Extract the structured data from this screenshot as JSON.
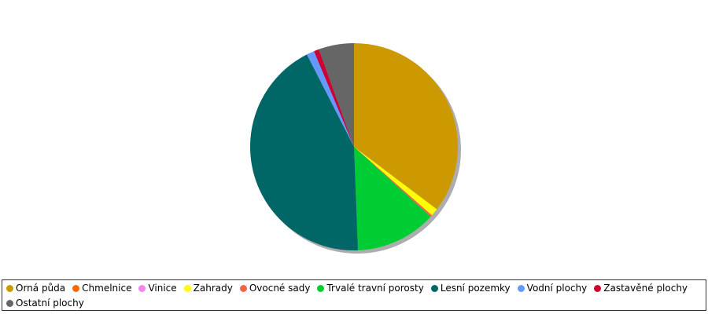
{
  "chart_data": {
    "type": "pie",
    "categories": [
      "Orná půda",
      "Chmelnice",
      "Vinice",
      "Zahrady",
      "Ovocné sady",
      "Trvalé travní porosty",
      "Lesní pozemky",
      "Vodní plochy",
      "Zastavěné plochy",
      "Ostatní plochy"
    ],
    "values": [
      35.3,
      0,
      0,
      1.2,
      0.3,
      12.6,
      43.1,
      1.2,
      0.8,
      5.5
    ],
    "colors": [
      "#cc9900",
      "#ff6600",
      "#ee88ee",
      "#ffff00",
      "#ee6644",
      "#00cc33",
      "#006666",
      "#6699ff",
      "#cc0033",
      "#666666"
    ],
    "legend": "bottom"
  }
}
